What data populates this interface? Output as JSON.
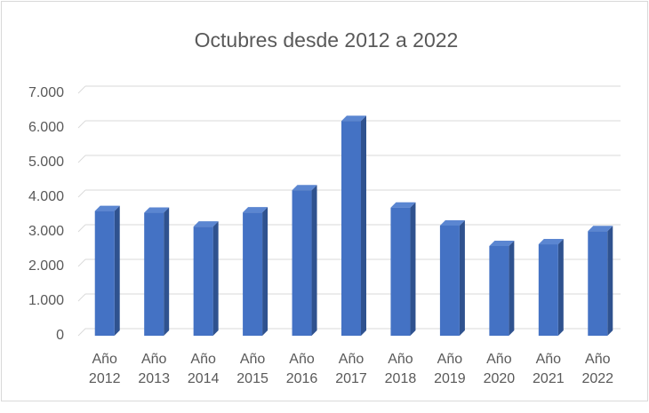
{
  "chart_data": {
    "type": "bar3d",
    "title": "Octubres desde 2012 a 2022",
    "categories": [
      "Año 2012",
      "Año 2013",
      "Año 2014",
      "Año 2015",
      "Año 2016",
      "Año 2017",
      "Año 2018",
      "Año 2019",
      "Año 2020",
      "Año 2021",
      "Año 2022"
    ],
    "values": [
      3600,
      3550,
      3150,
      3560,
      4200,
      6200,
      3700,
      3180,
      2590,
      2640,
      3020
    ],
    "color": "#4472c4",
    "ylim": [
      0,
      7000
    ],
    "yticks": [
      0,
      {
        "value": 1000,
        "label": "1.000"
      },
      {
        "value": 2000,
        "label": "2.000"
      },
      {
        "value": 3000,
        "label": "3.000"
      },
      {
        "value": 4000,
        "label": "4.000"
      },
      {
        "value": 5000,
        "label": "5.000"
      },
      {
        "value": 6000,
        "label": "6.000"
      },
      {
        "value": 7000,
        "label": "7.000"
      }
    ],
    "grid": true
  }
}
